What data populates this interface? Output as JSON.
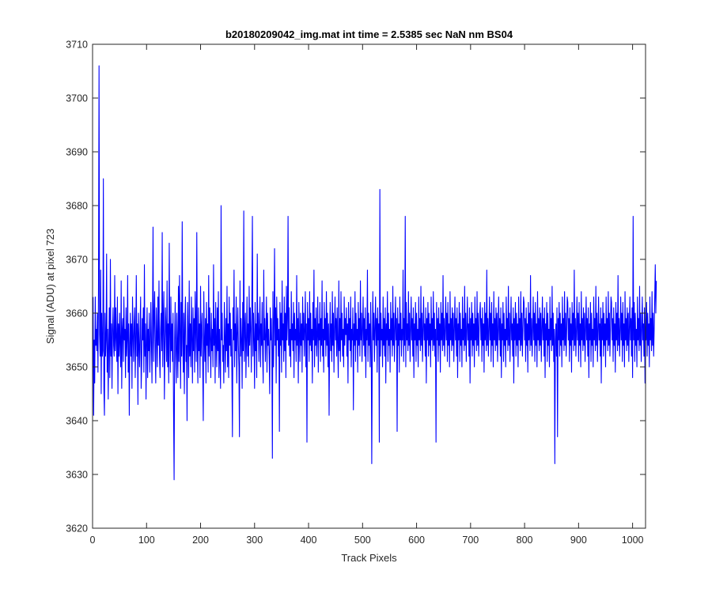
{
  "chart_data": {
    "type": "line",
    "title": "b20180209042_img.mat int time = 2.5385 sec  NaN nm BS04",
    "xlabel": "Track Pixels",
    "ylabel": "Signal (ADU) at pixel 723",
    "xlim": [
      0,
      1024
    ],
    "ylim": [
      3620,
      3710
    ],
    "xticks": [
      "0",
      "100",
      "200",
      "300",
      "400",
      "500",
      "600",
      "700",
      "800",
      "900",
      "1000"
    ],
    "yticks": [
      "3620",
      "3630",
      "3640",
      "3650",
      "3660",
      "3670",
      "3680",
      "3690",
      "3700",
      "3710"
    ],
    "grid": false,
    "box": true,
    "series": [
      {
        "color": "#0000ff",
        "x_start": 1,
        "x_step": 1,
        "values": [
          3663,
          3641,
          3655,
          3647,
          3663,
          3654,
          3657,
          3653,
          3660,
          3649,
          3665,
          3706,
          3656,
          3652,
          3668,
          3645,
          3660,
          3652,
          3653,
          3685,
          3646,
          3641,
          3660,
          3652,
          3655,
          3671,
          3649,
          3657,
          3644,
          3654,
          3661,
          3648,
          3670,
          3652,
          3658,
          3646,
          3657,
          3661,
          3654,
          3652,
          3667,
          3653,
          3661,
          3655,
          3651,
          3663,
          3645,
          3658,
          3652,
          3660,
          3654,
          3650,
          3666,
          3646,
          3657,
          3659,
          3651,
          3663,
          3655,
          3657,
          3648,
          3661,
          3652,
          3655,
          3667,
          3649,
          3658,
          3641,
          3654,
          3660,
          3652,
          3658,
          3646,
          3663,
          3656,
          3651,
          3658,
          3661,
          3648,
          3655,
          3667,
          3652,
          3658,
          3643,
          3660,
          3654,
          3650,
          3657,
          3663,
          3646,
          3651,
          3659,
          3655,
          3661,
          3649,
          3669,
          3652,
          3658,
          3644,
          3655,
          3661,
          3648,
          3657,
          3653,
          3660,
          3649,
          3654,
          3662,
          3655,
          3647,
          3658,
          3676,
          3651,
          3659,
          3664,
          3653,
          3647,
          3661,
          3656,
          3650,
          3663,
          3654,
          3666,
          3652,
          3648,
          3657,
          3660,
          3653,
          3675,
          3650,
          3659,
          3664,
          3644,
          3653,
          3661,
          3657,
          3651,
          3666,
          3650,
          3658,
          3647,
          3673,
          3656,
          3649,
          3663,
          3653,
          3658,
          3651,
          3660,
          3642,
          3629,
          3655,
          3662,
          3652,
          3647,
          3660,
          3654,
          3648,
          3665,
          3651,
          3667,
          3657,
          3646,
          3662,
          3652,
          3677,
          3655,
          3649,
          3660,
          3645,
          3658,
          3663,
          3651,
          3654,
          3640,
          3662,
          3656,
          3648,
          3666,
          3652,
          3658,
          3650,
          3663,
          3655,
          3647,
          3661,
          3653,
          3659,
          3649,
          3664,
          3657,
          3651,
          3675,
          3654,
          3647,
          3661,
          3653,
          3658,
          3648,
          3665,
          3652,
          3657,
          3660,
          3650,
          3640,
          3664,
          3655,
          3651,
          3659,
          3647,
          3662,
          3654,
          3658,
          3649,
          3667,
          3652,
          3661,
          3655,
          3648,
          3660,
          3653,
          3657,
          3650,
          3669,
          3654,
          3659,
          3647,
          3662,
          3655,
          3650,
          3661,
          3653,
          3664,
          3648,
          3657,
          3652,
          3646,
          3680,
          3655,
          3660,
          3651,
          3654,
          3647,
          3662,
          3656,
          3649,
          3659,
          3653,
          3665,
          3650,
          3658,
          3648,
          3663,
          3654,
          3660,
          3652,
          3657,
          3649,
          3637,
          3661,
          3655,
          3668,
          3650,
          3658,
          3653,
          3663,
          3647,
          3656,
          3661,
          3654,
          3650,
          3637,
          3666,
          3652,
          3659,
          3655,
          3646,
          3662,
          3653,
          3679,
          3651,
          3657,
          3660,
          3648,
          3655,
          3663,
          3652,
          3658,
          3650,
          3665,
          3654,
          3661,
          3657,
          3649,
          3663,
          3678,
          3652,
          3660,
          3655,
          3646,
          3662,
          3653,
          3658,
          3648,
          3671,
          3655,
          3660,
          3651,
          3657,
          3663,
          3650,
          3658,
          3654,
          3662,
          3652,
          3647,
          3668,
          3655,
          3659,
          3651,
          3656,
          3663,
          3649,
          3660,
          3654,
          3657,
          3652,
          3645,
          3661,
          3655,
          3659,
          3653,
          3633,
          3664,
          3650,
          3658,
          3672,
          3654,
          3661,
          3647,
          3663,
          3655,
          3659,
          3652,
          3657,
          3638,
          3662,
          3654,
          3660,
          3649,
          3666,
          3655,
          3658,
          3651,
          3663,
          3653,
          3660,
          3648,
          3665,
          3655,
          3659,
          3678,
          3654,
          3661,
          3652,
          3657,
          3650,
          3664,
          3655,
          3658,
          3653,
          3662,
          3648,
          3660,
          3655,
          3657,
          3651,
          3667,
          3654,
          3659,
          3647,
          3662,
          3656,
          3651,
          3660,
          3654,
          3658,
          3649,
          3663,
          3655,
          3660,
          3652,
          3657,
          3664,
          3650,
          3658,
          3636,
          3662,
          3655,
          3659,
          3651,
          3664,
          3654,
          3660,
          3653,
          3657,
          3647,
          3662,
          3655,
          3668,
          3650,
          3659,
          3654,
          3661,
          3652,
          3656,
          3663,
          3649,
          3658,
          3655,
          3662,
          3651,
          3659,
          3654,
          3666,
          3652,
          3657,
          3649,
          3662,
          3655,
          3659,
          3652,
          3664,
          3654,
          3660,
          3650,
          3658,
          3641,
          3655,
          3662,
          3653,
          3658,
          3651,
          3664,
          3654,
          3660,
          3649,
          3657,
          3663,
          3655,
          3659,
          3652,
          3661,
          3654,
          3648,
          3666,
          3653,
          3659,
          3651,
          3664,
          3655,
          3660,
          3652,
          3657,
          3650,
          3663,
          3654,
          3659,
          3656,
          3661,
          3652,
          3658,
          3647,
          3662,
          3655,
          3659,
          3653,
          3663,
          3650,
          3657,
          3655,
          3661,
          3642,
          3658,
          3654,
          3664,
          3651,
          3660,
          3655,
          3657,
          3649,
          3662,
          3654,
          3659,
          3652,
          3666,
          3655,
          3660,
          3651,
          3657,
          3663,
          3654,
          3659,
          3652,
          3661,
          3648,
          3657,
          3655,
          3668,
          3651,
          3660,
          3654,
          3658,
          3650,
          3662,
          3655,
          3632,
          3653,
          3664,
          3655,
          3660,
          3651,
          3657,
          3663,
          3654,
          3659,
          3649,
          3661,
          3655,
          3658,
          3636,
          3683,
          3652,
          3660,
          3655,
          3657,
          3650,
          3663,
          3654,
          3659,
          3652,
          3661,
          3647,
          3658,
          3655,
          3664,
          3651,
          3660,
          3654,
          3657,
          3649,
          3662,
          3655,
          3659,
          3652,
          3665,
          3654,
          3660,
          3651,
          3657,
          3663,
          3655,
          3659,
          3638,
          3661,
          3654,
          3658,
          3649,
          3663,
          3655,
          3660,
          3652,
          3657,
          3655,
          3668,
          3651,
          3659,
          3654,
          3678,
          3650,
          3662,
          3655,
          3658,
          3653,
          3664,
          3654,
          3660,
          3651,
          3657,
          3663,
          3655,
          3659,
          3652,
          3661,
          3648,
          3658,
          3655,
          3662,
          3651,
          3660,
          3654,
          3657,
          3650,
          3663,
          3655,
          3659,
          3653,
          3665,
          3654,
          3660,
          3651,
          3657,
          3663,
          3655,
          3658,
          3652,
          3661,
          3647,
          3659,
          3655,
          3662,
          3652,
          3660,
          3654,
          3658,
          3650,
          3663,
          3655,
          3659,
          3653,
          3664,
          3654,
          3660,
          3652,
          3657,
          3636,
          3662,
          3655,
          3659,
          3651,
          3661,
          3654,
          3658,
          3649,
          3662,
          3655,
          3660,
          3653,
          3667,
          3654,
          3659,
          3652,
          3657,
          3663,
          3655,
          3660,
          3651,
          3662,
          3654,
          3658,
          3650,
          3664,
          3655,
          3659,
          3653,
          3661,
          3654,
          3660,
          3651,
          3657,
          3663,
          3655,
          3659,
          3652,
          3661,
          3648,
          3658,
          3655,
          3662,
          3651,
          3660,
          3654,
          3657,
          3650,
          3663,
          3655,
          3659,
          3653,
          3665,
          3654,
          3660,
          3651,
          3657,
          3663,
          3655,
          3658,
          3652,
          3661,
          3647,
          3659,
          3655,
          3662,
          3652,
          3660,
          3654,
          3658,
          3650,
          3663,
          3655,
          3659,
          3653,
          3664,
          3654,
          3660,
          3652,
          3657,
          3660,
          3662,
          3655,
          3659,
          3651,
          3661,
          3654,
          3658,
          3649,
          3662,
          3655,
          3660,
          3653,
          3668,
          3654,
          3659,
          3652,
          3657,
          3663,
          3655,
          3660,
          3651,
          3662,
          3654,
          3658,
          3650,
          3664,
          3655,
          3659,
          3653,
          3661,
          3654,
          3660,
          3651,
          3657,
          3663,
          3655,
          3659,
          3652,
          3661,
          3648,
          3658,
          3655,
          3662,
          3651,
          3660,
          3654,
          3657,
          3650,
          3663,
          3655,
          3659,
          3653,
          3665,
          3654,
          3660,
          3651,
          3657,
          3663,
          3655,
          3658,
          3652,
          3661,
          3647,
          3659,
          3655,
          3662,
          3652,
          3660,
          3654,
          3658,
          3650,
          3663,
          3655,
          3659,
          3653,
          3664,
          3654,
          3660,
          3652,
          3657,
          3663,
          3662,
          3655,
          3659,
          3651,
          3661,
          3654,
          3658,
          3649,
          3662,
          3655,
          3660,
          3653,
          3667,
          3654,
          3659,
          3652,
          3657,
          3663,
          3655,
          3660,
          3651,
          3662,
          3654,
          3658,
          3650,
          3664,
          3655,
          3659,
          3653,
          3661,
          3654,
          3660,
          3651,
          3657,
          3663,
          3655,
          3659,
          3652,
          3661,
          3648,
          3658,
          3655,
          3662,
          3651,
          3660,
          3654,
          3657,
          3650,
          3663,
          3655,
          3659,
          3653,
          3665,
          3654,
          3660,
          3651,
          3657,
          3632,
          3655,
          3658,
          3652,
          3661,
          3637,
          3659,
          3655,
          3662,
          3652,
          3660,
          3654,
          3658,
          3650,
          3663,
          3655,
          3659,
          3653,
          3664,
          3654,
          3660,
          3652,
          3657,
          3663,
          3662,
          3655,
          3659,
          3651,
          3661,
          3654,
          3658,
          3649,
          3662,
          3655,
          3660,
          3653,
          3668,
          3654,
          3659,
          3652,
          3657,
          3663,
          3655,
          3660,
          3651,
          3662,
          3654,
          3658,
          3650,
          3664,
          3655,
          3659,
          3653,
          3661,
          3654,
          3660,
          3651,
          3657,
          3663,
          3655,
          3659,
          3652,
          3661,
          3648,
          3658,
          3655,
          3662,
          3651,
          3660,
          3654,
          3657,
          3650,
          3663,
          3655,
          3659,
          3653,
          3665,
          3654,
          3660,
          3651,
          3657,
          3663,
          3655,
          3658,
          3652,
          3661,
          3647,
          3659,
          3655,
          3662,
          3652,
          3660,
          3654,
          3658,
          3650,
          3663,
          3655,
          3659,
          3653,
          3664,
          3654,
          3660,
          3652,
          3657,
          3663,
          3662,
          3655,
          3659,
          3651,
          3661,
          3654,
          3658,
          3649,
          3662,
          3655,
          3660,
          3653,
          3667,
          3654,
          3659,
          3652,
          3657,
          3663,
          3655,
          3660,
          3651,
          3662,
          3654,
          3658,
          3650,
          3664,
          3655,
          3659,
          3653,
          3661,
          3654,
          3660,
          3651,
          3657,
          3663,
          3655,
          3659,
          3652,
          3661,
          3648,
          3678,
          3655,
          3662,
          3651,
          3660,
          3654,
          3657,
          3650,
          3663,
          3655,
          3659,
          3653,
          3665,
          3654,
          3660,
          3651,
          3657,
          3663,
          3655,
          3658,
          3652,
          3661,
          3647,
          3659,
          3655,
          3662,
          3652,
          3660,
          3654,
          3658,
          3650,
          3663,
          3655,
          3659,
          3653,
          3664,
          3654,
          3660,
          3652,
          3657,
          3663,
          3669,
          3660,
          3666
        ]
      }
    ]
  }
}
